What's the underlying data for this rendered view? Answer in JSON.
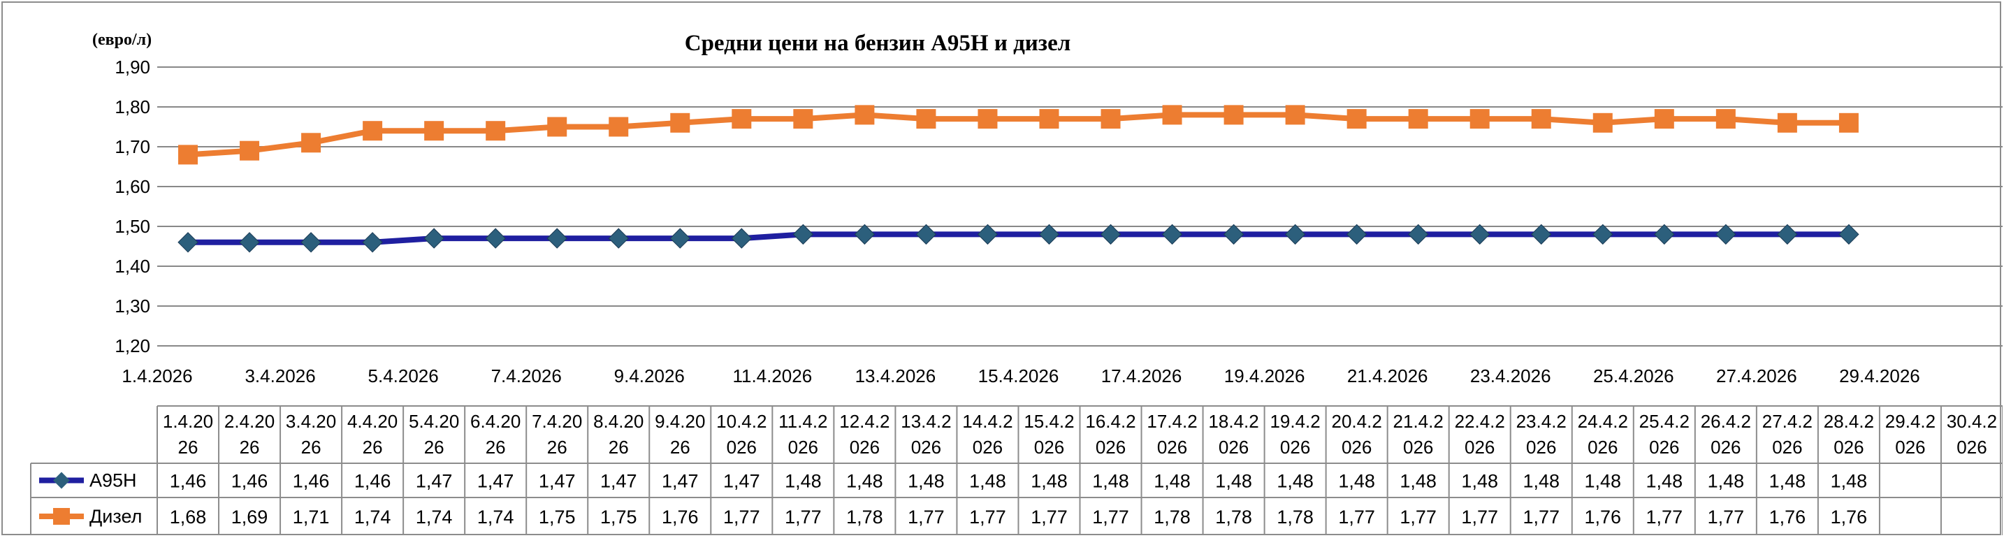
{
  "chart_data": {
    "type": "line",
    "title": "Средни цени на бензин A95H и дизел",
    "ylabel": "(евро/л)",
    "xlabel": "",
    "ylim": [
      1.2,
      1.9
    ],
    "yticks": [
      "1,20",
      "1,30",
      "1,40",
      "1,50",
      "1,60",
      "1,70",
      "1,80",
      "1,90"
    ],
    "x_axis_ticks": [
      "1.4.2026",
      "3.4.2026",
      "5.4.2026",
      "7.4.2026",
      "9.4.2026",
      "11.4.2026",
      "13.4.2026",
      "15.4.2026",
      "17.4.2026",
      "19.4.2026",
      "21.4.2026",
      "23.4.2026",
      "25.4.2026",
      "27.4.2026",
      "29.4.2026"
    ],
    "categories": [
      "1.4.2026",
      "2.4.2026",
      "3.4.2026",
      "4.4.2026",
      "5.4.2026",
      "6.4.2026",
      "7.4.2026",
      "8.4.2026",
      "9.4.2026",
      "10.4.2026",
      "11.4.2026",
      "12.4.2026",
      "13.4.2026",
      "14.4.2026",
      "15.4.2026",
      "16.4.2026",
      "17.4.2026",
      "18.4.2026",
      "19.4.2026",
      "20.4.2026",
      "21.4.2026",
      "22.4.2026",
      "23.4.2026",
      "24.4.2026",
      "25.4.2026",
      "26.4.2026",
      "27.4.2026",
      "28.4.2026",
      "29.4.2026",
      "30.4.2026"
    ],
    "table_categories": [
      [
        "1.4.20",
        "26"
      ],
      [
        "2.4.20",
        "26"
      ],
      [
        "3.4.20",
        "26"
      ],
      [
        "4.4.20",
        "26"
      ],
      [
        "5.4.20",
        "26"
      ],
      [
        "6.4.20",
        "26"
      ],
      [
        "7.4.20",
        "26"
      ],
      [
        "8.4.20",
        "26"
      ],
      [
        "9.4.20",
        "26"
      ],
      [
        "10.4.2",
        "026"
      ],
      [
        "11.4.2",
        "026"
      ],
      [
        "12.4.2",
        "026"
      ],
      [
        "13.4.2",
        "026"
      ],
      [
        "14.4.2",
        "026"
      ],
      [
        "15.4.2",
        "026"
      ],
      [
        "16.4.2",
        "026"
      ],
      [
        "17.4.2",
        "026"
      ],
      [
        "18.4.2",
        "026"
      ],
      [
        "19.4.2",
        "026"
      ],
      [
        "20.4.2",
        "026"
      ],
      [
        "21.4.2",
        "026"
      ],
      [
        "22.4.2",
        "026"
      ],
      [
        "23.4.2",
        "026"
      ],
      [
        "24.4.2",
        "026"
      ],
      [
        "25.4.2",
        "026"
      ],
      [
        "26.4.2",
        "026"
      ],
      [
        "27.4.2",
        "026"
      ],
      [
        "28.4.2",
        "026"
      ],
      [
        "29.4.2",
        "026"
      ],
      [
        "30.4.2",
        "026"
      ]
    ],
    "series": [
      {
        "name": "A95H",
        "color": "#1f1fa0",
        "marker": "diamond",
        "marker_color": "#2c5f7c",
        "values": [
          1.46,
          1.46,
          1.46,
          1.46,
          1.47,
          1.47,
          1.47,
          1.47,
          1.47,
          1.47,
          1.48,
          1.48,
          1.48,
          1.48,
          1.48,
          1.48,
          1.48,
          1.48,
          1.48,
          1.48,
          1.48,
          1.48,
          1.48,
          1.48,
          1.48,
          1.48,
          1.48,
          1.48,
          null,
          null
        ],
        "labels": [
          "1,46",
          "1,46",
          "1,46",
          "1,46",
          "1,47",
          "1,47",
          "1,47",
          "1,47",
          "1,47",
          "1,47",
          "1,48",
          "1,48",
          "1,48",
          "1,48",
          "1,48",
          "1,48",
          "1,48",
          "1,48",
          "1,48",
          "1,48",
          "1,48",
          "1,48",
          "1,48",
          "1,48",
          "1,48",
          "1,48",
          "1,48",
          "1,48",
          "",
          ""
        ]
      },
      {
        "name": "Дизел",
        "color": "#ed7d31",
        "marker": "square",
        "marker_color": "#ed7d31",
        "values": [
          1.68,
          1.69,
          1.71,
          1.74,
          1.74,
          1.74,
          1.75,
          1.75,
          1.76,
          1.77,
          1.77,
          1.78,
          1.77,
          1.77,
          1.77,
          1.77,
          1.78,
          1.78,
          1.78,
          1.77,
          1.77,
          1.77,
          1.77,
          1.76,
          1.77,
          1.77,
          1.76,
          1.76,
          null,
          null
        ],
        "labels": [
          "1,68",
          "1,69",
          "1,71",
          "1,74",
          "1,74",
          "1,74",
          "1,75",
          "1,75",
          "1,76",
          "1,77",
          "1,77",
          "1,78",
          "1,77",
          "1,77",
          "1,77",
          "1,77",
          "1,78",
          "1,78",
          "1,78",
          "1,77",
          "1,77",
          "1,77",
          "1,77",
          "1,76",
          "1,77",
          "1,77",
          "1,76",
          "1,76",
          "",
          ""
        ]
      }
    ],
    "grid": true,
    "legend": "data-table"
  }
}
